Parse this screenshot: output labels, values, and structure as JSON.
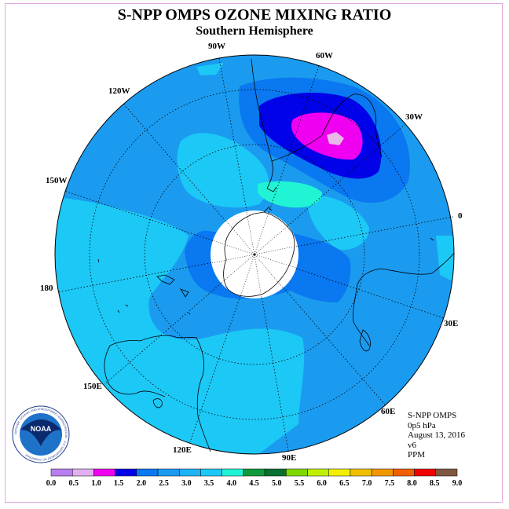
{
  "header": {
    "title": "S-NPP OMPS OZONE MIXING RATIO",
    "subtitle": "Southern Hemisphere"
  },
  "map": {
    "projection": "polar-stereographic-south",
    "longitude_labels": [
      "90W",
      "60W",
      "30W",
      "0",
      "30E",
      "60E",
      "90E",
      "120E",
      "150E",
      "180",
      "150W",
      "120W"
    ],
    "polar_mask": "no data near pole",
    "feature_colors": {
      "background_field": "#1a9bf0",
      "light_field": "#1cc8f6",
      "mid_field": "#0a78f0",
      "dark_max": "#0202e8",
      "peak": "#f000f0",
      "peak_core": "#e8b8e8",
      "cyan_patch": "#20f4d4"
    }
  },
  "info": {
    "instrument": "S-NPP OMPS",
    "level": "0p5 hPa",
    "date": "August 13, 2016",
    "version": "v6",
    "units": "PPM"
  },
  "colorbar": {
    "ticks": [
      "0.0",
      "0.5",
      "1.0",
      "1.5",
      "2.0",
      "2.5",
      "3.0",
      "3.5",
      "4.0",
      "4.5",
      "5.0",
      "5.5",
      "6.0",
      "6.5",
      "7.0",
      "7.5",
      "8.0",
      "8.5",
      "9.0"
    ],
    "colors": [
      "#b87ff0",
      "#e0b0f0",
      "#f000f0",
      "#0202e8",
      "#0a78f0",
      "#1a9bf0",
      "#1cb4f6",
      "#1cc8f6",
      "#20f4d4",
      "#109a3c",
      "#087030",
      "#80d800",
      "#c0f000",
      "#f0f000",
      "#f0c000",
      "#f09800",
      "#f06000",
      "#f00000",
      "#805840"
    ]
  },
  "logo": {
    "text": "NOAA",
    "ring_text": "NATIONAL OCEANIC AND ATMOSPHERIC ADMINISTRATION · U.S. DEPARTMENT OF COMMERCE"
  }
}
